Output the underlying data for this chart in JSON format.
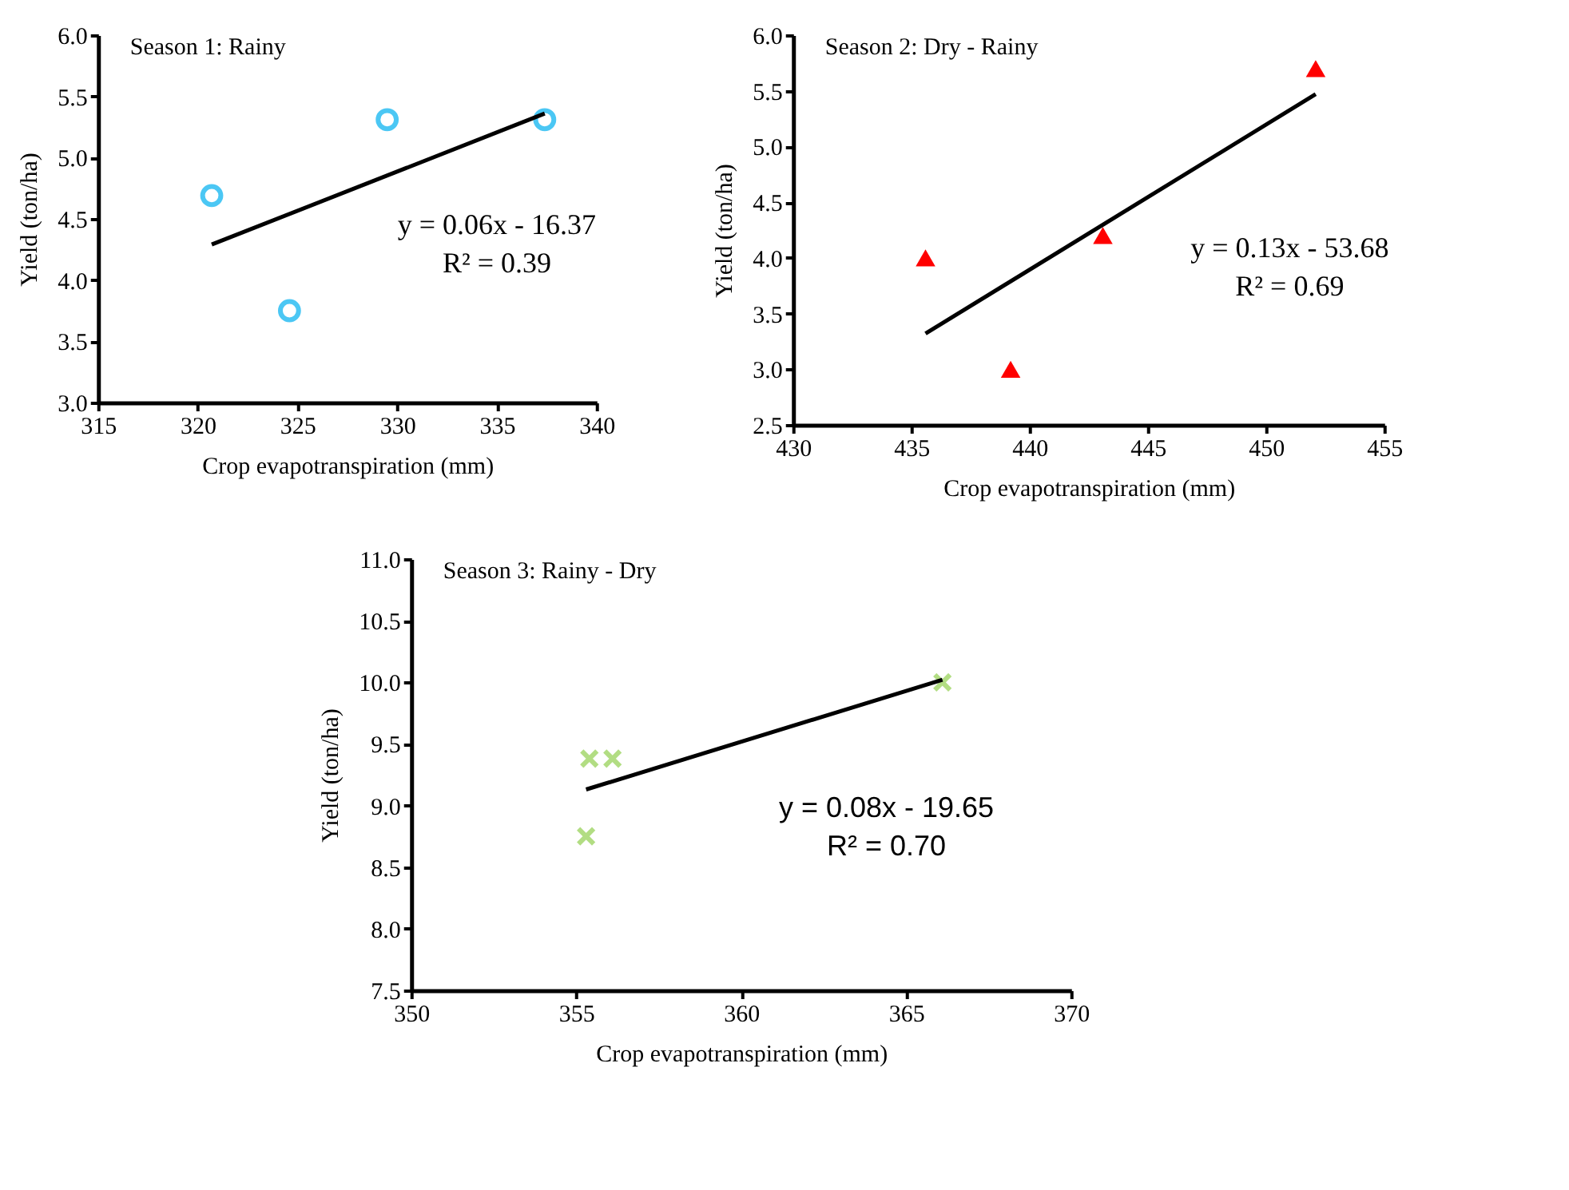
{
  "chart_data": [
    {
      "type": "scatter",
      "title": "Season 1: Rainy",
      "xlabel": "Crop evapotranspiration (mm)",
      "ylabel": "Yield (ton/ha)",
      "xlim": [
        315,
        340
      ],
      "xticks": [
        315,
        320,
        325,
        330,
        335,
        340
      ],
      "ylim": [
        3.0,
        6.0
      ],
      "yticks": [
        {
          "value": 3.0,
          "label": "3.0"
        },
        3.5,
        {
          "value": 4.0,
          "label": "4.0"
        },
        4.5,
        {
          "value": 5.0,
          "label": "5.0"
        },
        5.5,
        {
          "value": 6.0,
          "label": "6.0"
        }
      ],
      "grid": false,
      "annotations": [
        "y = 0.06x - 16.37",
        "R² = 0.39"
      ],
      "series": [
        {
          "marker": "circle",
          "color": "#00b0f0",
          "x": [
            320.7,
            324.6,
            329.5,
            337.4
          ],
          "values": [
            4.69,
            3.75,
            5.31,
            5.31
          ]
        },
        {
          "type": "line",
          "color": "#000000",
          "x": [
            320.7,
            337.4
          ],
          "values": [
            4.29,
            5.36
          ]
        }
      ]
    },
    {
      "type": "scatter",
      "title": "Season 2: Dry - Rainy",
      "xlabel": "Crop evapotranspiration (mm)",
      "ylabel": "Yield (ton/ha)",
      "xlim": [
        430,
        455
      ],
      "xticks": [
        430,
        435,
        440,
        445,
        450,
        455
      ],
      "ylim": [
        2.5,
        6.0
      ],
      "yticks": [
        2.5,
        {
          "value": 3.0,
          "label": "3.0"
        },
        3.5,
        {
          "value": 4.0,
          "label": "4.0"
        },
        4.5,
        {
          "value": 5.0,
          "label": "5.0"
        },
        5.5,
        {
          "value": 6.0,
          "label": "6.0"
        }
      ],
      "grid": false,
      "annotations": [
        "y = 0.13x - 53.68",
        "R² = 0.69"
      ],
      "series": [
        {
          "marker": "triangle",
          "color": "#ff0000",
          "x": [
            435.6,
            439.2,
            443.1,
            452.1
          ],
          "values": [
            4.0,
            3.0,
            4.2,
            5.7
          ]
        },
        {
          "type": "line",
          "color": "#000000",
          "x": [
            435.6,
            452.1
          ],
          "values": [
            3.32,
            5.47
          ]
        }
      ]
    },
    {
      "type": "scatter",
      "title": "Season 3: Rainy - Dry",
      "xlabel": "Crop evapotranspiration (mm)",
      "ylabel": "Yield (ton/ha)",
      "xlim": [
        350,
        370
      ],
      "xticks": [
        350,
        355,
        360,
        365,
        370
      ],
      "ylim": [
        7.5,
        11.0
      ],
      "yticks": [
        7.5,
        {
          "value": 8.0,
          "label": "8.0"
        },
        8.5,
        {
          "value": 9.0,
          "label": "9.0"
        },
        9.5,
        {
          "value": 10.0,
          "label": "10.0"
        },
        10.5,
        {
          "value": 11.0,
          "label": "11.0"
        }
      ],
      "grid": false,
      "annotations": [
        "y = 0.08x - 19.65",
        "R² = 0.70"
      ],
      "series": [
        {
          "marker": "cross",
          "color": "#92d050",
          "x": [
            355.3,
            355.4,
            356.1,
            366.1
          ],
          "values": [
            8.75,
            9.38,
            9.38,
            10.0
          ]
        },
        {
          "type": "line",
          "color": "#000000",
          "x": [
            355.3,
            366.1
          ],
          "values": [
            9.13,
            10.02
          ]
        }
      ]
    }
  ]
}
